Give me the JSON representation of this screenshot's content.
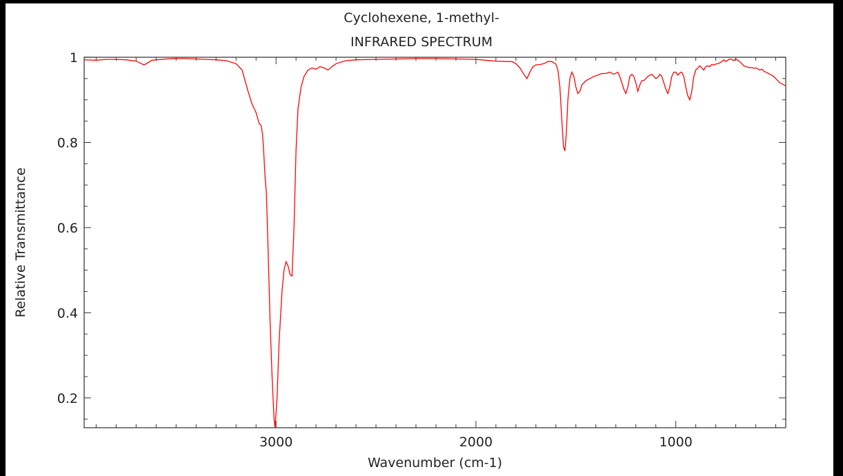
{
  "chart_data": {
    "type": "line",
    "title": "Cyclohexene, 1-methyl-",
    "subtitle": "INFRARED SPECTRUM",
    "xlabel": "Wavenumber (cm-1)",
    "ylabel": "Relative Transmittance",
    "xlim": [
      3960,
      450
    ],
    "ylim": [
      0.13,
      1.0
    ],
    "x_ticks": [
      3000,
      2000,
      1000
    ],
    "x_tick_labels": [
      "3000",
      "2000",
      "1000"
    ],
    "y_ticks": [
      0.2,
      0.4,
      0.6,
      0.8,
      1.0
    ],
    "y_tick_labels": [
      "0.2",
      "0.4",
      "0.6",
      "0.8",
      "1"
    ],
    "grid": false,
    "series": [
      {
        "color": "#ff0000",
        "points": [
          [
            3960,
            0.994
          ],
          [
            3900,
            0.993
          ],
          [
            3850,
            0.995
          ],
          [
            3800,
            0.995
          ],
          [
            3750,
            0.994
          ],
          [
            3700,
            0.991
          ],
          [
            3660,
            0.982
          ],
          [
            3620,
            0.993
          ],
          [
            3550,
            0.996
          ],
          [
            3500,
            0.997
          ],
          [
            3450,
            0.997
          ],
          [
            3400,
            0.996
          ],
          [
            3350,
            0.995
          ],
          [
            3300,
            0.994
          ],
          [
            3250,
            0.992
          ],
          [
            3200,
            0.985
          ],
          [
            3170,
            0.97
          ],
          [
            3140,
            0.92
          ],
          [
            3120,
            0.89
          ],
          [
            3100,
            0.87
          ],
          [
            3085,
            0.845
          ],
          [
            3075,
            0.84
          ],
          [
            3068,
            0.82
          ],
          [
            3062,
            0.78
          ],
          [
            3055,
            0.72
          ],
          [
            3048,
            0.68
          ],
          [
            3040,
            0.55
          ],
          [
            3030,
            0.38
          ],
          [
            3020,
            0.25
          ],
          [
            3010,
            0.15
          ],
          [
            3005,
            0.13
          ],
          [
            2995,
            0.2
          ],
          [
            2985,
            0.33
          ],
          [
            2970,
            0.45
          ],
          [
            2960,
            0.5
          ],
          [
            2950,
            0.52
          ],
          [
            2940,
            0.51
          ],
          [
            2930,
            0.49
          ],
          [
            2920,
            0.486
          ],
          [
            2910,
            0.6
          ],
          [
            2900,
            0.78
          ],
          [
            2890,
            0.88
          ],
          [
            2875,
            0.93
          ],
          [
            2860,
            0.955
          ],
          [
            2840,
            0.97
          ],
          [
            2820,
            0.975
          ],
          [
            2800,
            0.972
          ],
          [
            2780,
            0.978
          ],
          [
            2760,
            0.975
          ],
          [
            2740,
            0.97
          ],
          [
            2720,
            0.978
          ],
          [
            2700,
            0.985
          ],
          [
            2650,
            0.992
          ],
          [
            2600,
            0.994
          ],
          [
            2500,
            0.995
          ],
          [
            2400,
            0.996
          ],
          [
            2300,
            0.997
          ],
          [
            2200,
            0.997
          ],
          [
            2100,
            0.996
          ],
          [
            2000,
            0.995
          ],
          [
            1950,
            0.993
          ],
          [
            1900,
            0.991
          ],
          [
            1850,
            0.99
          ],
          [
            1820,
            0.99
          ],
          [
            1800,
            0.985
          ],
          [
            1780,
            0.975
          ],
          [
            1760,
            0.96
          ],
          [
            1745,
            0.95
          ],
          [
            1730,
            0.965
          ],
          [
            1715,
            0.978
          ],
          [
            1700,
            0.982
          ],
          [
            1680,
            0.983
          ],
          [
            1660,
            0.985
          ],
          [
            1640,
            0.99
          ],
          [
            1620,
            0.99
          ],
          [
            1600,
            0.984
          ],
          [
            1590,
            0.97
          ],
          [
            1580,
            0.93
          ],
          [
            1570,
            0.85
          ],
          [
            1562,
            0.79
          ],
          [
            1555,
            0.78
          ],
          [
            1548,
            0.82
          ],
          [
            1540,
            0.9
          ],
          [
            1530,
            0.95
          ],
          [
            1520,
            0.965
          ],
          [
            1510,
            0.955
          ],
          [
            1500,
            0.93
          ],
          [
            1490,
            0.915
          ],
          [
            1480,
            0.92
          ],
          [
            1470,
            0.935
          ],
          [
            1450,
            0.945
          ],
          [
            1430,
            0.95
          ],
          [
            1410,
            0.955
          ],
          [
            1390,
            0.958
          ],
          [
            1370,
            0.962
          ],
          [
            1350,
            0.962
          ],
          [
            1330,
            0.965
          ],
          [
            1310,
            0.96
          ],
          [
            1290,
            0.965
          ],
          [
            1280,
            0.955
          ],
          [
            1270,
            0.94
          ],
          [
            1260,
            0.925
          ],
          [
            1250,
            0.915
          ],
          [
            1240,
            0.93
          ],
          [
            1230,
            0.955
          ],
          [
            1220,
            0.96
          ],
          [
            1210,
            0.955
          ],
          [
            1200,
            0.94
          ],
          [
            1190,
            0.92
          ],
          [
            1180,
            0.935
          ],
          [
            1170,
            0.945
          ],
          [
            1160,
            0.945
          ],
          [
            1150,
            0.95
          ],
          [
            1140,
            0.955
          ],
          [
            1130,
            0.958
          ],
          [
            1120,
            0.96
          ],
          [
            1110,
            0.955
          ],
          [
            1100,
            0.95
          ],
          [
            1090,
            0.953
          ],
          [
            1080,
            0.96
          ],
          [
            1070,
            0.955
          ],
          [
            1060,
            0.94
          ],
          [
            1050,
            0.925
          ],
          [
            1040,
            0.915
          ],
          [
            1030,
            0.93
          ],
          [
            1020,
            0.955
          ],
          [
            1010,
            0.965
          ],
          [
            1000,
            0.965
          ],
          [
            990,
            0.958
          ],
          [
            980,
            0.963
          ],
          [
            970,
            0.965
          ],
          [
            960,
            0.955
          ],
          [
            950,
            0.93
          ],
          [
            940,
            0.91
          ],
          [
            930,
            0.9
          ],
          [
            920,
            0.92
          ],
          [
            910,
            0.955
          ],
          [
            900,
            0.97
          ],
          [
            890,
            0.975
          ],
          [
            880,
            0.98
          ],
          [
            870,
            0.975
          ],
          [
            860,
            0.97
          ],
          [
            850,
            0.978
          ],
          [
            840,
            0.98
          ],
          [
            830,
            0.978
          ],
          [
            820,
            0.983
          ],
          [
            810,
            0.982
          ],
          [
            800,
            0.984
          ],
          [
            790,
            0.985
          ],
          [
            780,
            0.987
          ],
          [
            770,
            0.99
          ],
          [
            760,
            0.994
          ],
          [
            750,
            0.99
          ],
          [
            740,
            0.993
          ],
          [
            730,
            0.996
          ],
          [
            720,
            0.995
          ],
          [
            710,
            0.992
          ],
          [
            700,
            0.996
          ],
          [
            690,
            0.993
          ],
          [
            680,
            0.99
          ],
          [
            670,
            0.985
          ],
          [
            660,
            0.98
          ],
          [
            650,
            0.978
          ],
          [
            640,
            0.977
          ],
          [
            630,
            0.975
          ],
          [
            620,
            0.976
          ],
          [
            610,
            0.974
          ],
          [
            600,
            0.975
          ],
          [
            590,
            0.973
          ],
          [
            580,
            0.97
          ],
          [
            570,
            0.972
          ],
          [
            560,
            0.968
          ],
          [
            550,
            0.965
          ],
          [
            540,
            0.963
          ],
          [
            530,
            0.96
          ],
          [
            520,
            0.958
          ],
          [
            510,
            0.955
          ],
          [
            500,
            0.95
          ],
          [
            490,
            0.945
          ],
          [
            480,
            0.94
          ],
          [
            470,
            0.938
          ],
          [
            460,
            0.935
          ],
          [
            450,
            0.933
          ]
        ]
      }
    ]
  }
}
